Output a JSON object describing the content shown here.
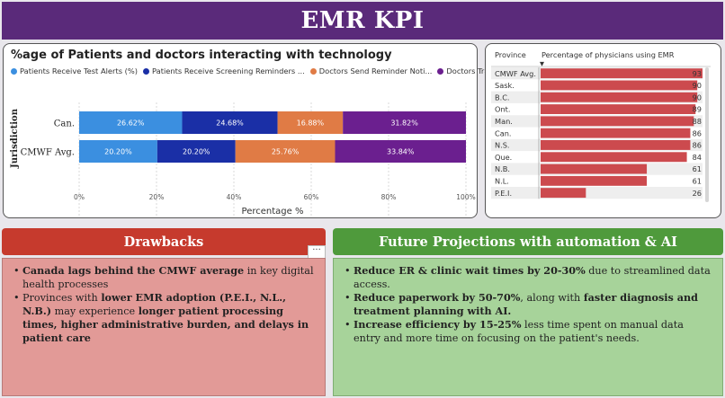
{
  "header": {
    "title": "EMR KPI"
  },
  "left_chart": {
    "title": "%age of Patients and doctors interacting with technology",
    "legend": [
      {
        "label": "Patients Receive Test Alerts (%)",
        "color": "#3b8fe0"
      },
      {
        "label": "Patients Receive Screening Reminders ...",
        "color": "#1a2fa6"
      },
      {
        "label": "Doctors Send Reminder Noti...",
        "color": "#e07b45"
      },
      {
        "label": "Doctors Track Lab Test...",
        "color": "#6b1f8f"
      }
    ]
  },
  "chart_data": [
    {
      "type": "bar",
      "orientation": "horizontal",
      "stacked": true,
      "title": "%age of Patients and doctors interacting with technology",
      "xlabel": "Percentage %",
      "ylabel": "Jurisdiction",
      "categories": [
        "Can.",
        "CMWF Avg."
      ],
      "series": [
        {
          "name": "Patients Receive Test Alerts (%)",
          "color": "#3b8fe0",
          "values": [
            26.62,
            20.2
          ],
          "labels": [
            "26.62%",
            "20.20%"
          ]
        },
        {
          "name": "Patients Receive Screening Reminders ...",
          "color": "#1a2fa6",
          "values": [
            24.68,
            20.2
          ],
          "labels": [
            "24.68%",
            "20.20%"
          ]
        },
        {
          "name": "Doctors Send Reminder Noti...",
          "color": "#e07b45",
          "values": [
            16.88,
            25.76
          ],
          "labels": [
            "16.88%",
            "25.76%"
          ]
        },
        {
          "name": "Doctors Track Lab Test...",
          "color": "#6b1f8f",
          "values": [
            31.82,
            33.84
          ],
          "labels": [
            "31.82%",
            "33.84%"
          ]
        }
      ],
      "xlim": [
        0,
        100
      ],
      "xticks": [
        0,
        20,
        40,
        60,
        80,
        100
      ],
      "xtick_labels": [
        "0%",
        "20%",
        "40%",
        "60%",
        "80%",
        "100%"
      ],
      "grid": true
    },
    {
      "type": "bar",
      "orientation": "horizontal",
      "title": "Percentage of physicians using EMR",
      "row_header": "Province",
      "sort_indicator": "▼",
      "categories": [
        "CMWF Avg.",
        "Sask.",
        "B.C.",
        "Ont.",
        "Man.",
        "Can.",
        "N.S.",
        "Que.",
        "N.B.",
        "N.L.",
        "P.E.I."
      ],
      "values": [
        93,
        90,
        90,
        89,
        88,
        86,
        86,
        84,
        61,
        61,
        26
      ],
      "value_labels": [
        "93",
        "90",
        "90",
        "89",
        "88",
        "86",
        "86",
        "84",
        "61",
        "61",
        "26"
      ],
      "color": "#cc4a4e",
      "xlim": [
        0,
        93
      ]
    }
  ],
  "drawbacks": {
    "title": "Drawbacks",
    "more_label": "···",
    "items": [
      [
        {
          "t": "Canada lags behind the CMWF average",
          "b": true
        },
        {
          "t": " in key digital health processes",
          "b": false
        }
      ],
      [
        {
          "t": "Provinces with ",
          "b": false
        },
        {
          "t": "lower EMR adoption (P.E.I., N.L., N.B.)",
          "b": true
        },
        {
          "t": " may experience ",
          "b": false
        },
        {
          "t": "longer patient processing times, higher administrative burden, and delays in patient care",
          "b": true
        }
      ]
    ]
  },
  "future": {
    "title": "Future Projections with automation & AI",
    "items": [
      [
        {
          "t": "Reduce ER & clinic wait times by 20-30%",
          "b": true
        },
        {
          "t": " due to streamlined data access.",
          "b": false
        }
      ],
      [
        {
          "t": "Reduce paperwork by 50-70%",
          "b": true
        },
        {
          "t": ", along with ",
          "b": false
        },
        {
          "t": "faster diagnosis and treatment planning with AI.",
          "b": true
        }
      ],
      [
        {
          "t": "Increase efficiency by 15-25%",
          "b": true
        },
        {
          "t": " less time spent on manual data entry and more time on focusing on the patient's needs.",
          "b": false
        }
      ]
    ]
  },
  "colors": {
    "header_bg": "#5a2a7a",
    "drawbacks_banner": "#c63a2d",
    "drawbacks_panel": "#e29a97",
    "future_banner": "#4f9a3c",
    "future_panel": "#a7d39a"
  }
}
